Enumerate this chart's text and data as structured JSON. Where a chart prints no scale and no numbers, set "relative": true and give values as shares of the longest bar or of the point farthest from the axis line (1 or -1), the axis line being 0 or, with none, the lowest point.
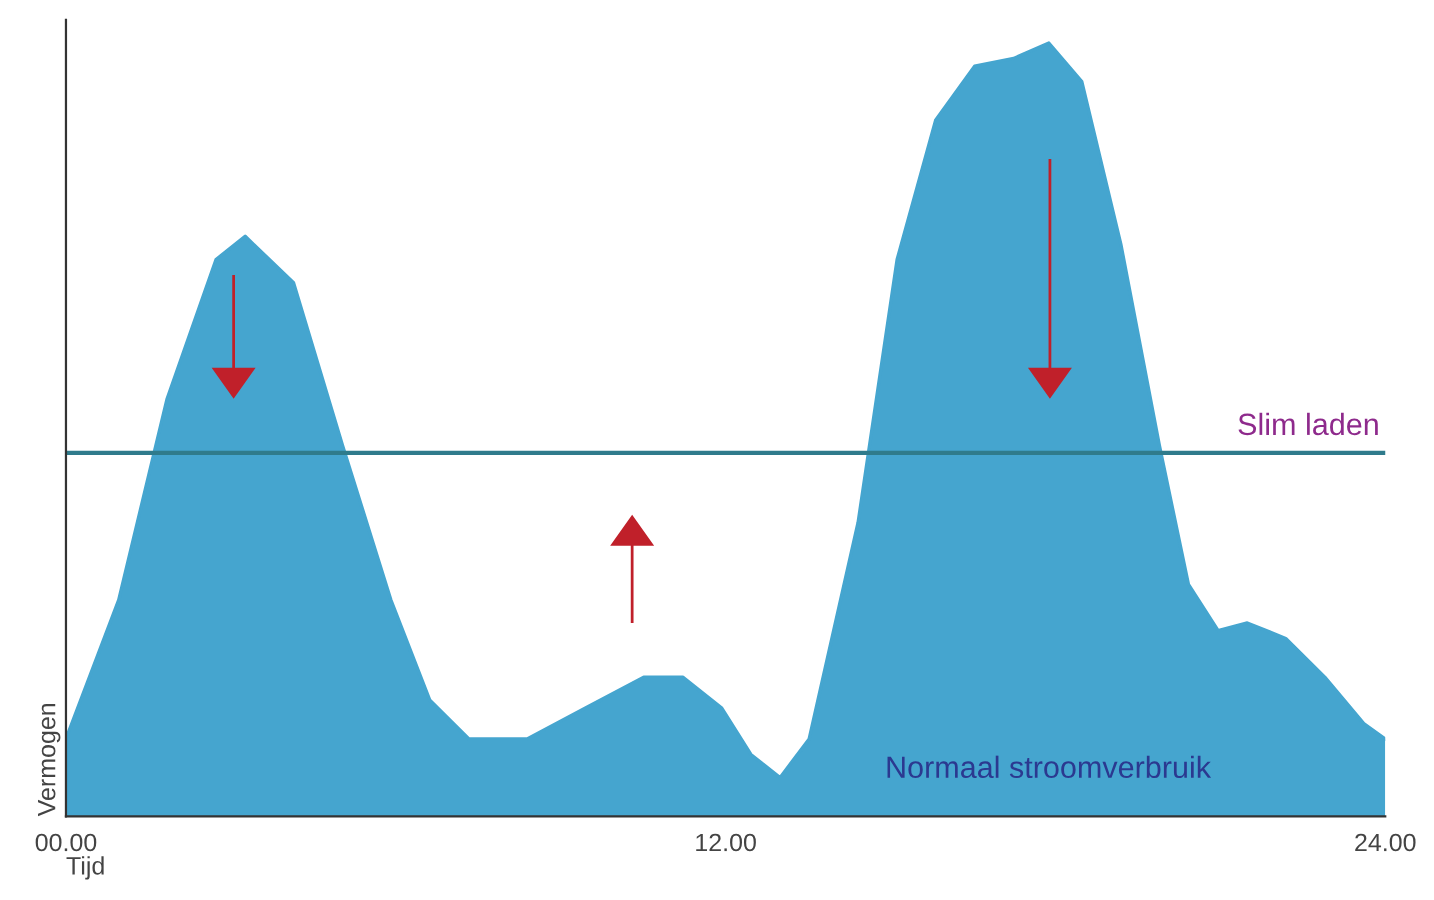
{
  "chart_data": {
    "type": "area",
    "relative": true,
    "xlabel": "Tijd",
    "ylabel": "Vermogen",
    "xlim": [
      0,
      24
    ],
    "xticks": [
      {
        "value": 0,
        "label": "00.00"
      },
      {
        "value": 12,
        "label": "12.00"
      },
      {
        "value": 24,
        "label": "24.00"
      }
    ],
    "grid": false,
    "ref_lines": [
      {
        "axis": "y",
        "value": 0.47,
        "label": "Slim laden",
        "color": "#2f7b8c"
      }
    ],
    "series": [
      {
        "name": "Normaal stroomverbruik",
        "color": "#45a5cf",
        "x": [
          0,
          0.96,
          1.84,
          2.73,
          3.26,
          4.14,
          5.03,
          5.91,
          6.62,
          7.33,
          8.39,
          9.45,
          10.51,
          11.22,
          11.93,
          12.46,
          12.99,
          13.52,
          14.41,
          15.12,
          15.82,
          16.53,
          17.24,
          17.88,
          18.48,
          19.19,
          19.89,
          20.42,
          20.96,
          21.49,
          22.19,
          22.9,
          23.61,
          24
        ],
        "values": [
          0.1,
          0.28,
          0.54,
          0.72,
          0.75,
          0.69,
          0.48,
          0.28,
          0.15,
          0.1,
          0.1,
          0.14,
          0.18,
          0.18,
          0.14,
          0.08,
          0.05,
          0.1,
          0.38,
          0.72,
          0.9,
          0.97,
          0.98,
          1.0,
          0.95,
          0.74,
          0.48,
          0.3,
          0.24,
          0.25,
          0.23,
          0.18,
          0.12,
          0.1
        ]
      }
    ]
  }
}
